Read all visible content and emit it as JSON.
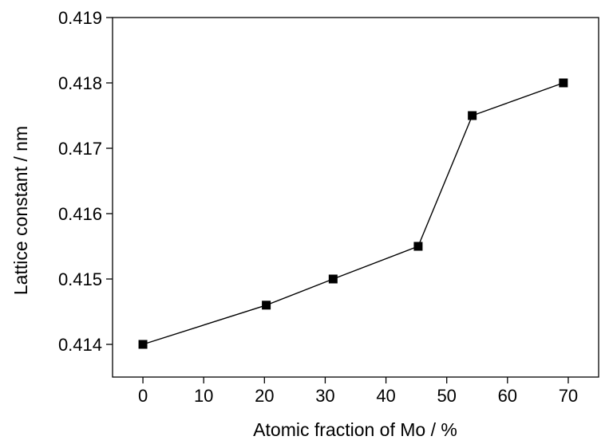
{
  "chart_data": {
    "type": "line",
    "title": "",
    "xlabel": "Atomic fraction of Mo / %",
    "ylabel": "Lattice constant / nm",
    "xlim": [
      -5,
      75
    ],
    "ylim": [
      0.4135,
      0.419
    ],
    "x_ticks": [
      "0",
      "10",
      "20",
      "30",
      "40",
      "50",
      "60",
      "70"
    ],
    "x_tick_values": [
      0,
      10,
      20,
      30,
      40,
      50,
      60,
      70
    ],
    "y_ticks": [
      "0.414",
      "0.415",
      "0.416",
      "0.417",
      "0.418",
      "0.419"
    ],
    "y_tick_values": [
      0.414,
      0.415,
      0.416,
      0.417,
      0.418,
      0.419
    ],
    "grid": false,
    "legend": false,
    "marker": "square",
    "color": "#000000",
    "series": [
      {
        "x": [
          0,
          20.3,
          31.3,
          45.3,
          54.2,
          69.2
        ],
        "y": [
          0.414,
          0.4146,
          0.415,
          0.4155,
          0.4175,
          0.418
        ]
      }
    ]
  }
}
